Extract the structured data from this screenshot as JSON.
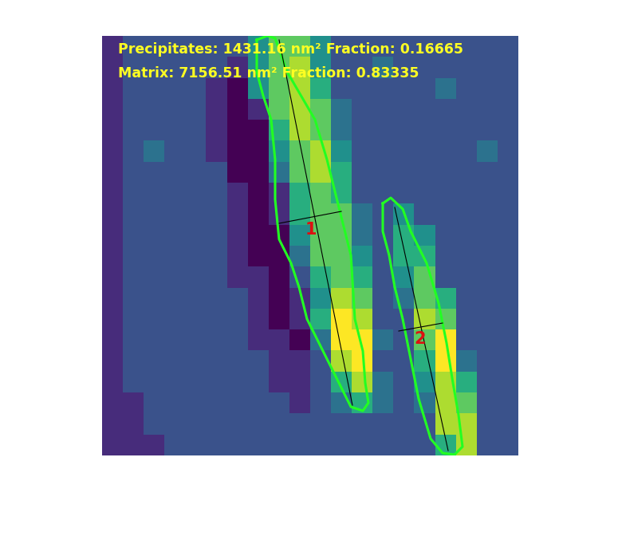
{
  "chart_data": {
    "type": "heatmap",
    "tick_labels": false,
    "annotations": [
      "Precipitates: 1431.16 nm² Fraction: 0.16665",
      "Matrix: 7156.51 nm² Fraction: 0.83335"
    ],
    "regions": [
      {
        "name": "1"
      },
      {
        "name": "2"
      }
    ],
    "cells": [
      [
        1,
        2,
        2,
        2,
        2,
        2,
        2,
        4,
        6,
        6,
        4,
        2,
        2,
        2,
        2,
        2,
        2,
        2,
        2,
        2
      ],
      [
        1,
        2,
        2,
        2,
        2,
        2,
        1,
        4,
        6,
        7,
        4,
        2,
        2,
        3,
        2,
        2,
        2,
        2,
        2,
        2
      ],
      [
        1,
        2,
        2,
        2,
        2,
        1,
        0,
        4,
        6,
        7,
        5,
        2,
        2,
        2,
        2,
        2,
        3,
        2,
        2,
        2
      ],
      [
        1,
        2,
        2,
        2,
        2,
        1,
        0,
        1,
        6,
        7,
        6,
        3,
        2,
        2,
        2,
        2,
        2,
        2,
        2,
        2
      ],
      [
        1,
        2,
        2,
        2,
        2,
        1,
        0,
        0,
        5,
        7,
        6,
        3,
        2,
        2,
        2,
        2,
        2,
        2,
        2,
        2
      ],
      [
        1,
        2,
        3,
        2,
        2,
        1,
        0,
        0,
        4,
        6,
        7,
        4,
        2,
        2,
        2,
        2,
        2,
        2,
        3,
        2
      ],
      [
        1,
        2,
        2,
        2,
        2,
        2,
        0,
        0,
        3,
        6,
        7,
        5,
        2,
        2,
        2,
        2,
        2,
        2,
        2,
        2
      ],
      [
        1,
        2,
        2,
        2,
        2,
        2,
        1,
        0,
        1,
        5,
        6,
        5,
        2,
        2,
        2,
        2,
        2,
        2,
        2,
        2
      ],
      [
        1,
        2,
        2,
        2,
        2,
        2,
        1,
        0,
        1,
        5,
        6,
        6,
        3,
        2,
        4,
        2,
        2,
        2,
        2,
        2
      ],
      [
        1,
        2,
        2,
        2,
        2,
        2,
        1,
        0,
        0,
        4,
        6,
        6,
        3,
        2,
        5,
        4,
        2,
        2,
        2,
        2
      ],
      [
        1,
        2,
        2,
        2,
        2,
        2,
        1,
        0,
        0,
        3,
        6,
        6,
        4,
        2,
        5,
        5,
        2,
        2,
        2,
        2
      ],
      [
        1,
        2,
        2,
        2,
        2,
        2,
        1,
        1,
        0,
        2,
        5,
        6,
        5,
        2,
        4,
        6,
        2,
        2,
        2,
        2
      ],
      [
        1,
        2,
        2,
        2,
        2,
        2,
        2,
        1,
        0,
        1,
        4,
        7,
        6,
        2,
        3,
        6,
        5,
        2,
        2,
        2
      ],
      [
        1,
        2,
        2,
        2,
        2,
        2,
        2,
        1,
        0,
        1,
        5,
        8,
        7,
        2,
        2,
        7,
        6,
        2,
        2,
        2
      ],
      [
        1,
        2,
        2,
        2,
        2,
        2,
        2,
        1,
        1,
        0,
        3,
        8,
        8,
        3,
        2,
        6,
        8,
        2,
        2,
        2
      ],
      [
        1,
        2,
        2,
        2,
        2,
        2,
        2,
        2,
        1,
        1,
        2,
        7,
        8,
        2,
        2,
        5,
        8,
        3,
        2,
        2
      ],
      [
        1,
        2,
        2,
        2,
        2,
        2,
        2,
        2,
        1,
        1,
        2,
        5,
        7,
        3,
        2,
        4,
        7,
        5,
        2,
        2
      ],
      [
        1,
        1,
        2,
        2,
        2,
        2,
        2,
        2,
        2,
        1,
        2,
        3,
        5,
        3,
        2,
        3,
        7,
        6,
        2,
        2
      ],
      [
        1,
        1,
        2,
        2,
        2,
        2,
        2,
        2,
        2,
        2,
        2,
        2,
        2,
        2,
        2,
        2,
        7,
        7,
        2,
        2
      ],
      [
        1,
        1,
        1,
        2,
        2,
        2,
        2,
        2,
        2,
        2,
        2,
        2,
        2,
        2,
        2,
        2,
        5,
        7,
        2,
        2
      ]
    ]
  }
}
